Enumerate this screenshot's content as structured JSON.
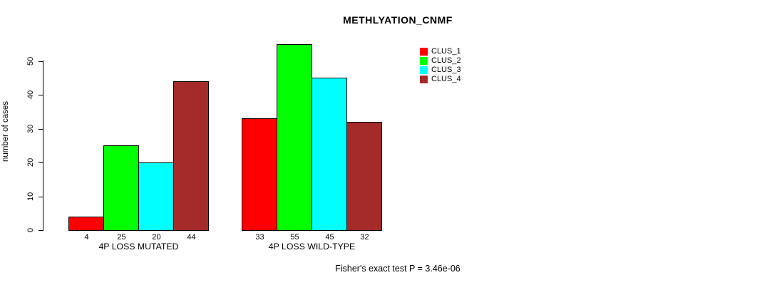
{
  "chart_data": {
    "type": "bar",
    "title": "METHLYATION_CNMF",
    "xlabel": "",
    "ylabel": "number of cases",
    "ylim": [
      0,
      55
    ],
    "yticks": [
      0,
      10,
      20,
      30,
      40,
      50
    ],
    "grid": false,
    "legend_position": "top-right",
    "categories": [
      "4P LOSS MUTATED",
      "4P LOSS WILD-TYPE"
    ],
    "series": [
      {
        "name": "CLUS_1",
        "color": "#ff0000",
        "values": [
          4,
          33
        ]
      },
      {
        "name": "CLUS_2",
        "color": "#00ff00",
        "values": [
          25,
          55
        ]
      },
      {
        "name": "CLUS_3",
        "color": "#00ffff",
        "values": [
          20,
          45
        ]
      },
      {
        "name": "CLUS_4",
        "color": "#a52a2a",
        "values": [
          44,
          32
        ]
      }
    ],
    "bar_value_labels": [
      [
        4,
        25,
        20,
        44
      ],
      [
        33,
        55,
        45,
        32
      ]
    ],
    "annotation": "Fisher's exact test P = 3.46e-06"
  }
}
